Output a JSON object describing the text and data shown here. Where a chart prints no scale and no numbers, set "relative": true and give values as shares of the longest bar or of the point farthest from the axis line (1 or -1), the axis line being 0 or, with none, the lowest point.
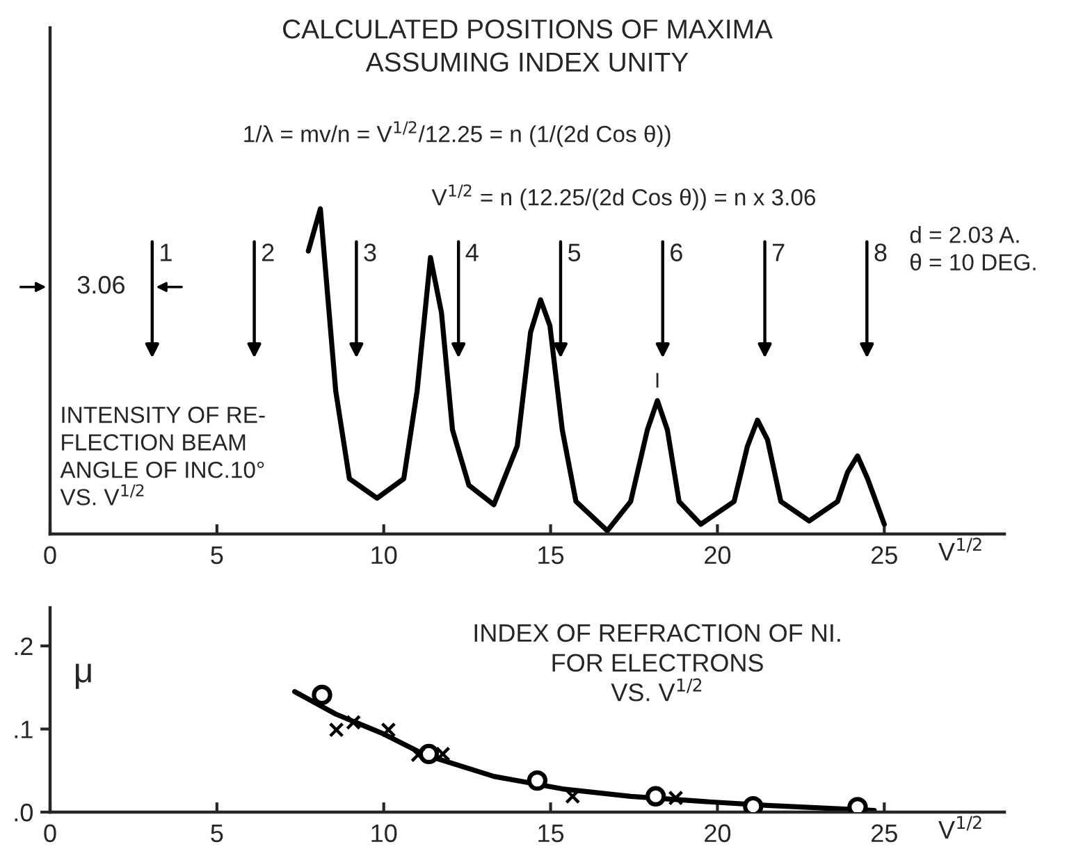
{
  "chart_data": [
    {
      "type": "line",
      "relative": true,
      "title": "CALCULATED POSITIONS OF MAXIMA\nASSUMING INDEX UNITY",
      "xlabel": "V$^{1/2}$",
      "xlim": [
        0,
        28.6
      ],
      "xticks": [
        0,
        5,
        10,
        15,
        20,
        25
      ],
      "tick_labels": "x",
      "grid": false,
      "line_style": "solid",
      "marker": "none",
      "series": [
        {
          "color": "#000000",
          "x": [
            7.74,
            8.1,
            8.56,
            8.97,
            9.8,
            10.6,
            11.0,
            11.4,
            11.73,
            12.06,
            12.55,
            13.3,
            14.0,
            14.4,
            14.7,
            14.98,
            15.35,
            15.76,
            16.7,
            17.4,
            17.9,
            18.2,
            18.5,
            18.85,
            19.5,
            20.5,
            20.9,
            21.2,
            21.5,
            21.9,
            22.75,
            23.6,
            23.9,
            24.2,
            24.5,
            25.0
          ],
          "values": [
            0.87,
            1.0,
            0.44,
            0.17,
            0.11,
            0.17,
            0.44,
            0.85,
            0.68,
            0.32,
            0.15,
            0.09,
            0.27,
            0.62,
            0.72,
            0.64,
            0.32,
            0.1,
            0.01,
            0.1,
            0.32,
            0.41,
            0.32,
            0.1,
            0.03,
            0.1,
            0.27,
            0.35,
            0.29,
            0.1,
            0.04,
            0.1,
            0.19,
            0.24,
            0.17,
            0.03
          ]
        }
      ],
      "annotations": [
        "1/λ = mv/n = V$^{1/2}$/12.25 = n (1/(2d Cos θ))",
        "V$^{1/2}$ = n (12.25/(2d Cos θ)) = n x 3.06",
        "d = 2.03 A.\nθ = 10 DEG.",
        "INTENSITY OF RE-\nFLECTION BEAM\nANGLE OF INC.10°\nVS. V$^{1/2}$",
        "3.06",
        "1",
        "2",
        "3",
        "4",
        "5",
        "6",
        "7",
        "8",
        "I"
      ]
    },
    {
      "type": "line",
      "xlabel": "V$^{1/2}$",
      "ylabel": "μ",
      "xlim": [
        0,
        28.6
      ],
      "xticks": [
        0,
        5,
        10,
        15,
        20,
        25
      ],
      "ylim": [
        0,
        0.246
      ],
      "yticks": [
        {
          "value": 0,
          "label": ".0"
        },
        {
          "value": 0.1,
          "label": ".1"
        },
        {
          "value": 0.2,
          "label": ".2"
        }
      ],
      "grid": false,
      "series": [
        {
          "color": "#000000",
          "marker": "none",
          "line_style": "solid",
          "x": [
            7.33,
            8.56,
            10.0,
            11.23,
            13.3,
            15.35,
            17.4,
            19.5,
            21.5,
            24.7
          ],
          "values": [
            0.145,
            0.118,
            0.094,
            0.069,
            0.043,
            0.028,
            0.019,
            0.013,
            0.008,
            0.002
          ]
        },
        {
          "type": "scatter",
          "color": "#000000",
          "marker": "circle",
          "x": [
            8.15,
            11.35,
            14.6,
            18.15,
            21.07,
            24.2
          ],
          "values": [
            0.141,
            0.07,
            0.038,
            0.019,
            0.007,
            0.006
          ]
        },
        {
          "type": "scatter",
          "color": "#000000",
          "marker": "cross",
          "x": [
            8.58,
            9.09,
            10.14,
            11.03,
            11.77,
            15.66,
            18.75
          ],
          "values": [
            0.099,
            0.108,
            0.099,
            0.069,
            0.07,
            0.019,
            0.017
          ]
        }
      ],
      "annotations": [
        "INDEX OF REFRACTION OF NI.\nFOR ELECTRONS\nVS. V$^{1/2}$"
      ]
    }
  ]
}
